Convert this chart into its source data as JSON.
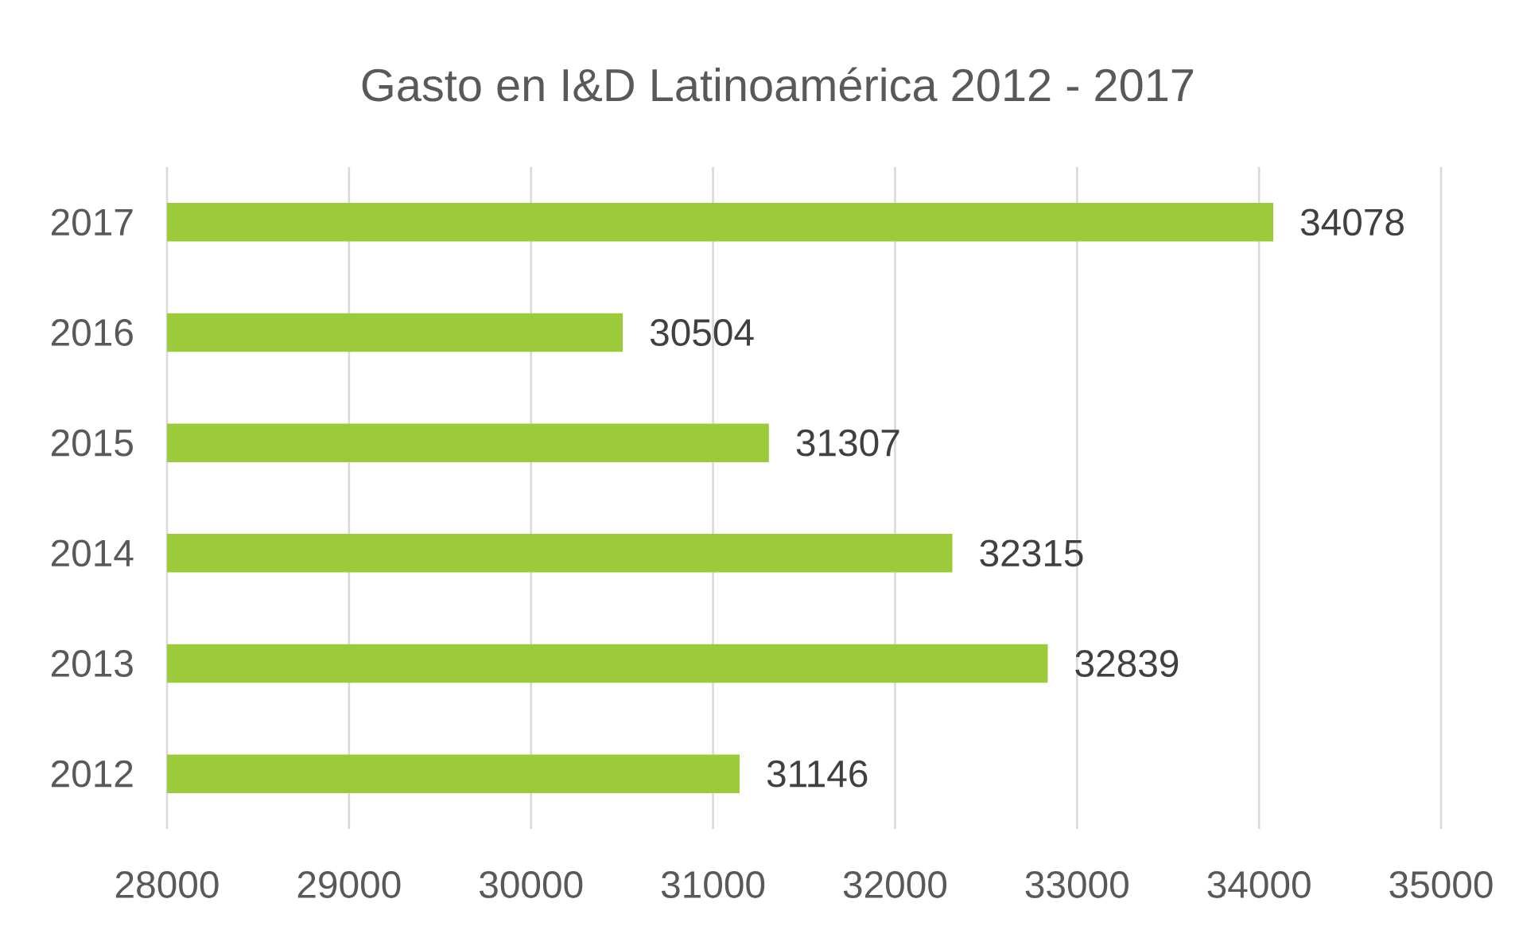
{
  "chart_data": {
    "type": "bar",
    "orientation": "horizontal",
    "title": "Gasto en I&D Latinoamérica 2012 - 2017",
    "categories": [
      "2017",
      "2016",
      "2015",
      "2014",
      "2013",
      "2012"
    ],
    "values": [
      34078,
      30504,
      31307,
      32315,
      32839,
      31146
    ],
    "color": "#9bcb3b",
    "xlim": [
      28000,
      35000
    ],
    "xticks": [
      28000,
      29000,
      30000,
      31000,
      32000,
      33000,
      34000,
      35000
    ],
    "grid": "x",
    "data_labels": true
  }
}
